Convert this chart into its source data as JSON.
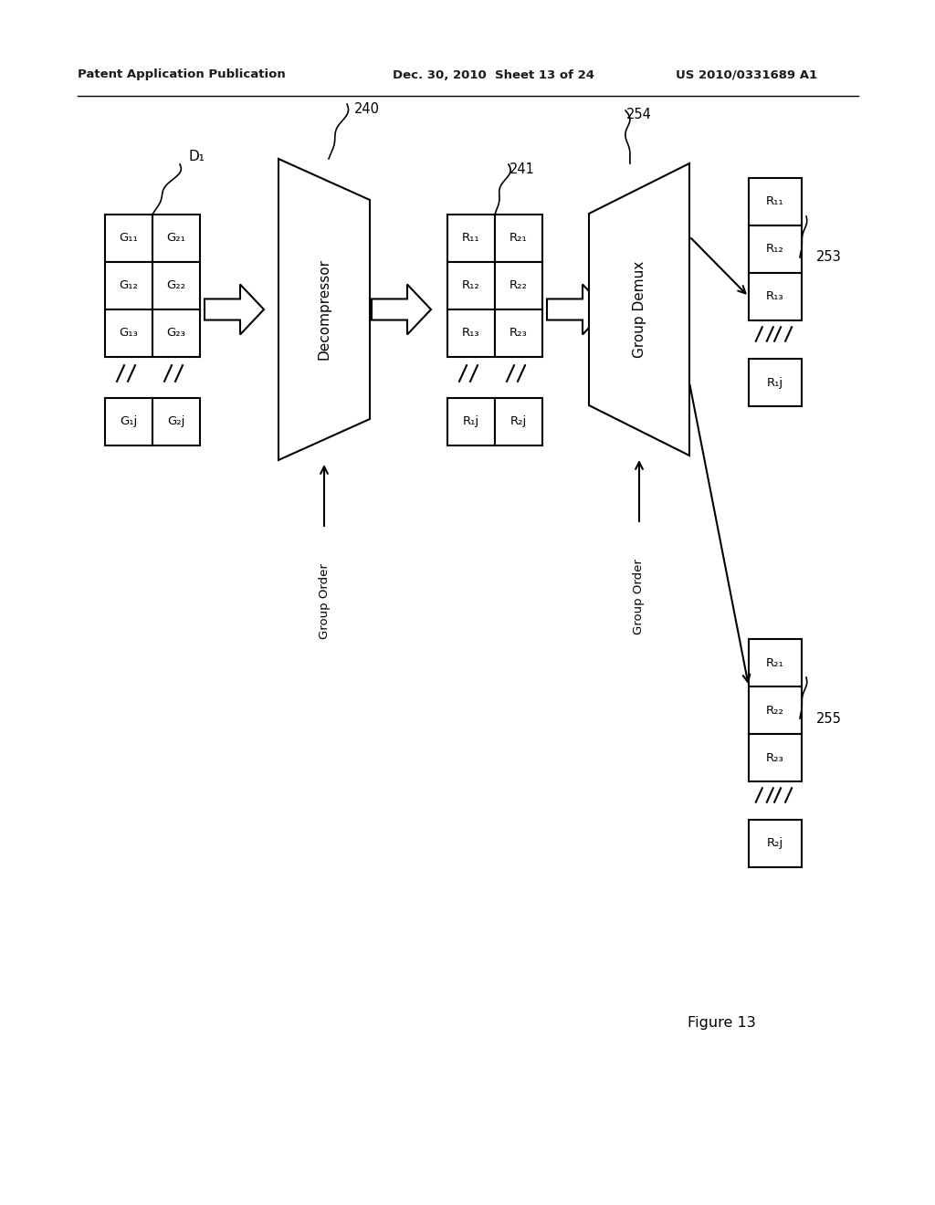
{
  "bg_color": "#ffffff",
  "header_left": "Patent Application Publication",
  "header_mid": "Dec. 30, 2010  Sheet 13 of 24",
  "header_right": "US 2010/0331689 A1",
  "figure_label": "Figure 13",
  "input_label": "D₁",
  "decompressor_label": "240",
  "decompressor_text": "Decompressor",
  "mid_label": "241",
  "demux_label": "254",
  "demux_text": "Group Demux",
  "group_order_label1": "Group Order",
  "group_order_label2": "Group Order",
  "out1_label": "253",
  "out2_label": "255",
  "inp_col1": [
    "G₁₁",
    "G₂₁",
    "G₁₂",
    "G₂₂",
    "G₁₃",
    "G₂₃",
    "G₁j",
    "G₂j"
  ],
  "mid_col1": [
    "R₁₁",
    "R₂₁",
    "R₁₂",
    "R₂₂",
    "R₁₃",
    "R₂₃",
    "R₁j",
    "R₂j"
  ],
  "out1_cells": [
    "R₁₁",
    "R₁₂",
    "R₁₃",
    "R₁j"
  ],
  "out2_cells": [
    "R₂₁",
    "R₂₂",
    "R₂₃",
    "R₂j"
  ]
}
